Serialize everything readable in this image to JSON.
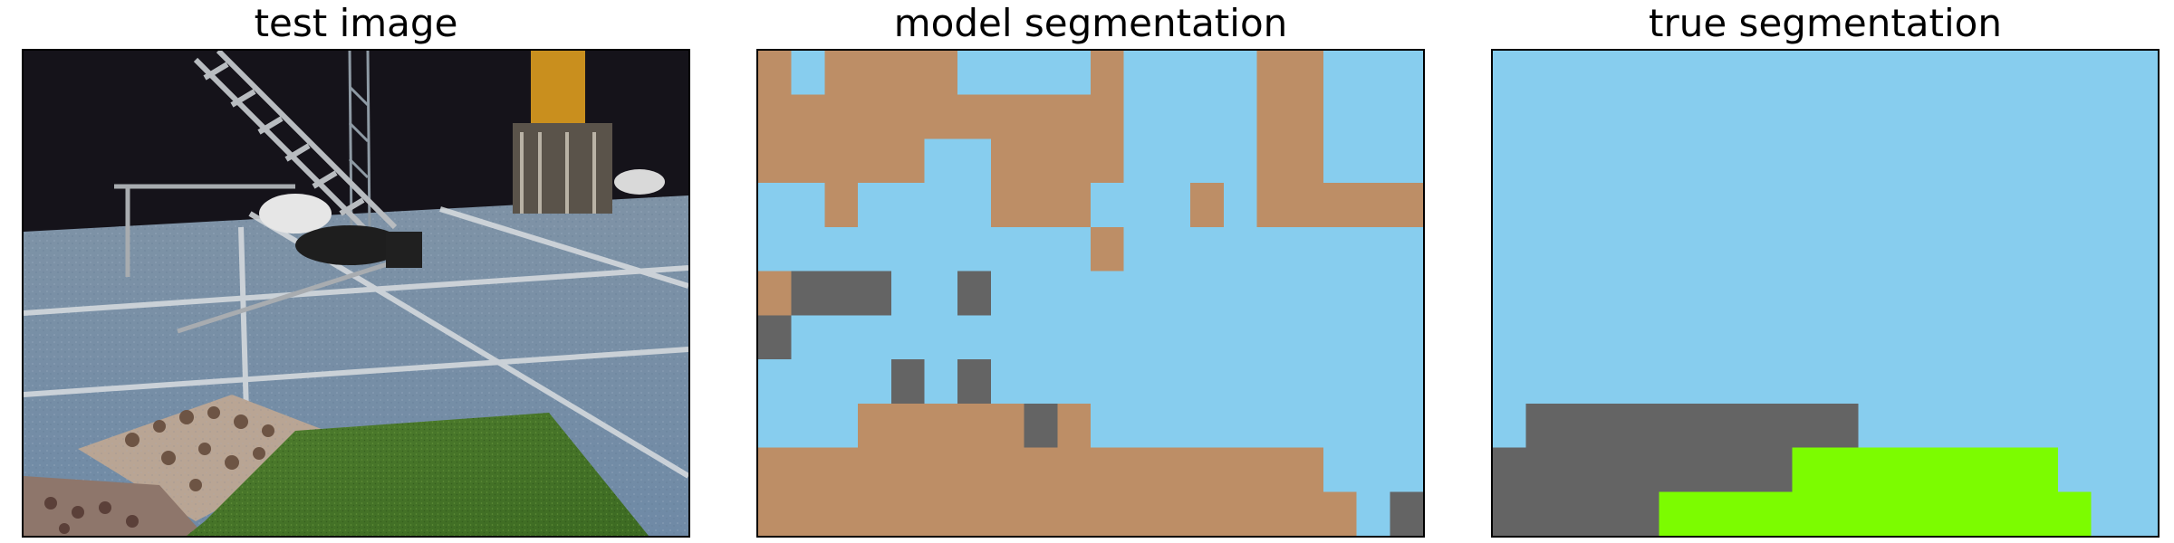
{
  "panels": [
    {
      "title": "test image"
    },
    {
      "title": "model segmentation"
    },
    {
      "title": "true segmentation"
    }
  ],
  "legend_colors": {
    "blue": "#87cdee",
    "brown": "#bd8e66",
    "gray": "#646464",
    "green": "#7cfc00"
  },
  "model_segmentation": {
    "cols": 20,
    "rows": 11,
    "grid": [
      "BUBBBBUUUUBUUUUBBUUU",
      "BBBBBBBBBBBUUUUBBUUU",
      "BBBBBUUBBBBUUUUBBUUU",
      "UUBUUUUBBBUUUBUBBBBB",
      "UUUUUUUUUUBUUUUUUUUU",
      "BGGGUUGUUUUUUUUUUUUU",
      "GUUUUUUUUUUUUUUUUUUU",
      "UUUUGUGUUUUUUUUUUUUU",
      "UUUBBBBBGBUUUUUUUUUU",
      "BBBBBBBBBBBBBBBBBUUU",
      "BBBBBBBBBBBBBBBBBBUG"
    ]
  },
  "true_segmentation": {
    "cols": 20,
    "rows": 11,
    "grid": [
      "UUUUUUUUUUUUUUUUUUUU",
      "UUUUUUUUUUUUUUUUUUUU",
      "UUUUUUUUUUUUUUUUUUUU",
      "UUUUUUUUUUUUUUUUUUUU",
      "UUUUUUUUUUUUUUUUUUUU",
      "UUUUUUUUUUUUUUUUUUUU",
      "UUUUUUUUUUUUUUUUUUUU",
      "UUUUUUUUUUUUUUUUUUUU",
      "UGGGGGGGGGGUUUUUUUUU",
      "GGGGGGGGGLLLLLLLLUUU",
      "GGGGGLLLLLLLLLLLLLUU"
    ]
  }
}
